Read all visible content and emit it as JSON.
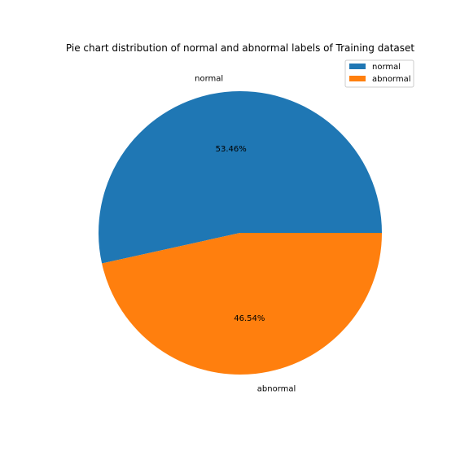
{
  "chart_data": {
    "type": "pie",
    "title": "Pie chart distribution of normal and abnormal labels of Training dataset",
    "categories": [
      "normal",
      "abnormal"
    ],
    "values": [
      53.46,
      46.54
    ],
    "percent_labels": [
      "53.46%",
      "46.54%"
    ],
    "colors": [
      "#1f77b4",
      "#ff7f0e"
    ],
    "start_angle_deg": 0,
    "direction": "counterclockwise",
    "legend": {
      "placement": "upper-right",
      "entries": [
        "normal",
        "abnormal"
      ]
    }
  }
}
